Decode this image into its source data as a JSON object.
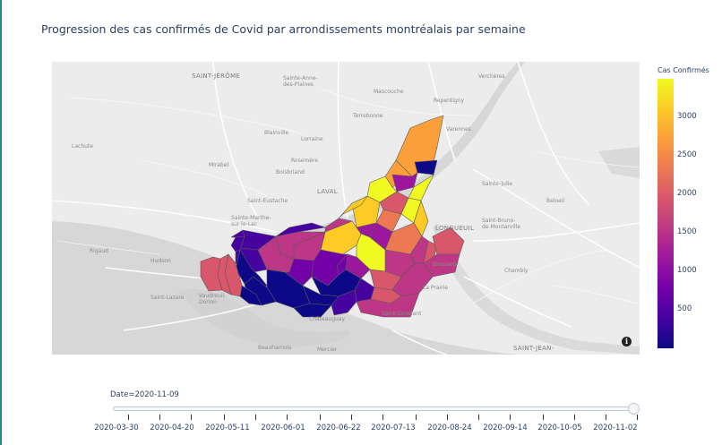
{
  "title": "Progression des cas confirmés de Covid par arrondissements montréalais par semaine",
  "map": {
    "basemap_places": [
      {
        "id": "st-jerome",
        "text": "SAINT-JÉRÔME",
        "big": true
      },
      {
        "id": "st-anne",
        "text": "Sainte-Anne-\ndes-Plaines",
        "big": false
      },
      {
        "id": "mascouche",
        "text": "Mascouche",
        "big": false
      },
      {
        "id": "repentigny",
        "text": "Repentigny",
        "big": false
      },
      {
        "id": "vercheres",
        "text": "Verchères",
        "big": false
      },
      {
        "id": "terrebonne",
        "text": "Terrebonne",
        "big": false
      },
      {
        "id": "blainville",
        "text": "Blainville",
        "big": false
      },
      {
        "id": "lorraine",
        "text": "Lorraine",
        "big": false
      },
      {
        "id": "varennes",
        "text": "Varennes",
        "big": false
      },
      {
        "id": "lachute",
        "text": "Lachute",
        "big": false
      },
      {
        "id": "rosemere",
        "text": "Rosemère",
        "big": false
      },
      {
        "id": "mirabel",
        "text": "Mirabel",
        "big": false
      },
      {
        "id": "boisbriand",
        "text": "Boisbriand",
        "big": false
      },
      {
        "id": "laval",
        "text": "LAVAL",
        "big": true
      },
      {
        "id": "st-julie",
        "text": "Sainte-Julie",
        "big": false
      },
      {
        "id": "st-eustache",
        "text": "Saint-Eustache",
        "big": false
      },
      {
        "id": "beloeil",
        "text": "Beloeil",
        "big": false
      },
      {
        "id": "st-marthe",
        "text": "Sainte-Marthe-\nsur-le-Lac",
        "big": false
      },
      {
        "id": "longueuil",
        "text": "LONGUEUIL",
        "big": true
      },
      {
        "id": "st-bruno",
        "text": "Saint-Bruno-\nde-Montarville",
        "big": false
      },
      {
        "id": "rigaud",
        "text": "Rigaud",
        "big": false
      },
      {
        "id": "hudson",
        "text": "Hudson",
        "big": false
      },
      {
        "id": "brossard",
        "text": "Brossard",
        "big": false
      },
      {
        "id": "chambly",
        "text": "Chambly",
        "big": false
      },
      {
        "id": "st-lazare",
        "text": "Saint-Lazare",
        "big": false
      },
      {
        "id": "vaudreuil",
        "text": "Vaudreuil-\nDorion",
        "big": false
      },
      {
        "id": "la-prairie",
        "text": "La Prairie",
        "big": false
      },
      {
        "id": "st-constant",
        "text": "Saint-Constant",
        "big": false
      },
      {
        "id": "chateauguay",
        "text": "Châteauguay",
        "big": false
      },
      {
        "id": "beauharnois",
        "text": "Beauharnois",
        "big": false
      },
      {
        "id": "mercier",
        "text": "Mercier",
        "big": false
      },
      {
        "id": "st-jean",
        "text": "SAINT-JEAN-",
        "big": true
      }
    ],
    "info_icon": "i"
  },
  "colorbar": {
    "title": "Cas Confirmés",
    "colorscale": [
      "#0d0887",
      "#46039f",
      "#7201a8",
      "#9c179e",
      "#bd3786",
      "#d8576b",
      "#ed7953",
      "#fb9f3a",
      "#fdca26",
      "#f0f921"
    ],
    "range": [
      0,
      3500
    ],
    "ticks": [
      "500",
      "1000",
      "1500",
      "2000",
      "2500",
      "3000"
    ]
  },
  "slider": {
    "current_label": "Date=2020-11-09",
    "current_value": "2020-11-09",
    "tick_labels": [
      "2020-03-30",
      "2020-04-20",
      "2020-05-11",
      "2020-06-01",
      "2020-06-22",
      "2020-07-13",
      "2020-08-24",
      "2020-09-14",
      "2020-10-05",
      "2020-11-02"
    ]
  }
}
